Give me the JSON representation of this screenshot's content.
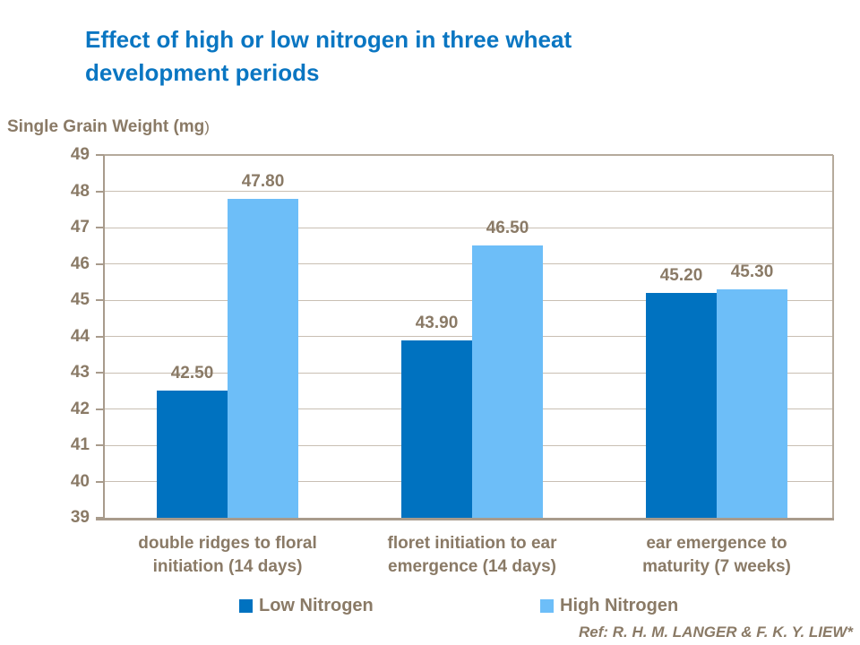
{
  "title": {
    "line1": "Effect of high or low nitrogen in three wheat",
    "line2": "development periods"
  },
  "y_axis_title": {
    "main": "Single Grain Weight (mg",
    "paren": ")"
  },
  "chart_data": {
    "type": "bar",
    "title": "Effect of high or low nitrogen in three wheat development periods",
    "ylabel": "Single Grain Weight (mg)",
    "xlabel": "",
    "categories": [
      "double ridges to floral initiation (14 days)",
      "floret initiation to ear emergence (14 days)",
      "ear emergence to maturity (7 weeks)"
    ],
    "categories_lines": [
      [
        "double ridges to floral",
        "initiation (14 days)"
      ],
      [
        "floret initiation to ear",
        "emergence (14 days)"
      ],
      [
        "ear emergence to",
        "maturity (7 weeks)"
      ]
    ],
    "series": [
      {
        "name": "Low Nitrogen",
        "color": "#0072c0",
        "values": [
          42.5,
          43.9,
          45.2
        ],
        "value_labels": [
          "42.50",
          "43.90",
          "45.20"
        ]
      },
      {
        "name": "High Nitrogen",
        "color": "#6dbef8",
        "values": [
          47.8,
          46.5,
          45.3
        ],
        "value_labels": [
          "47.80",
          "46.50",
          "45.30"
        ]
      }
    ],
    "ylim": [
      39,
      49
    ],
    "ytick_step": 1,
    "grid": true,
    "legend_position": "bottom"
  },
  "legend": {
    "items": [
      {
        "label": "Low Nitrogen",
        "color": "#0072c0"
      },
      {
        "label": "High Nitrogen",
        "color": "#6dbef8"
      }
    ]
  },
  "footer": {
    "ref": "Ref: R. H. M. LANGER & F. K. Y. LIEW*"
  },
  "colors": {
    "title_text": "#0a76c2",
    "axis_text": "#8a7a66",
    "gridline": "#c9bfb3",
    "axis_line": "#a89b8c",
    "low_bar": "#0072c0",
    "high_bar": "#6dbef8"
  }
}
